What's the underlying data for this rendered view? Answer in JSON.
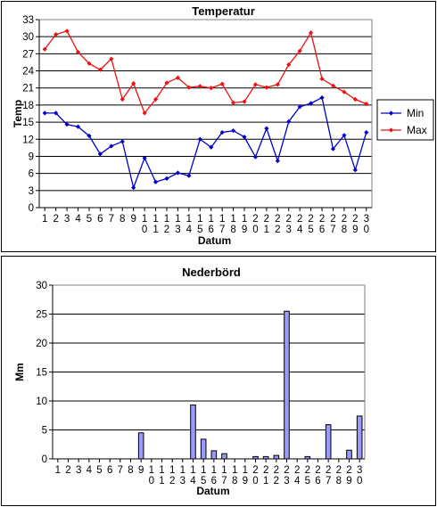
{
  "chart_data": [
    {
      "type": "line",
      "title": "Temperatur",
      "xlabel": "Datum",
      "ylabel": "Temp",
      "ylim": [
        0,
        33
      ],
      "yticks": [
        0,
        3,
        6,
        9,
        12,
        15,
        18,
        21,
        24,
        27,
        30,
        33
      ],
      "grid": true,
      "legend_placement": "right",
      "categories": [
        "1",
        "2",
        "3",
        "4",
        "5",
        "6",
        "7",
        "8",
        "9",
        "10",
        "11",
        "12",
        "13",
        "14",
        "15",
        "16",
        "17",
        "18",
        "19",
        "20",
        "21",
        "22",
        "23",
        "24",
        "25",
        "26",
        "27",
        "28",
        "29",
        "30"
      ],
      "series": [
        {
          "name": "Min",
          "color": "#0000cc",
          "values": [
            16.6,
            16.6,
            14.6,
            14.2,
            12.6,
            9.4,
            10.8,
            11.6,
            3.5,
            8.7,
            4.5,
            5.1,
            6.1,
            5.6,
            12.0,
            10.6,
            13.2,
            13.5,
            12.4,
            8.9,
            13.9,
            8.2,
            15.1,
            17.7,
            18.3,
            19.3,
            10.3,
            12.7,
            6.6,
            13.2
          ]
        },
        {
          "name": "Max",
          "color": "#ee1111",
          "values": [
            27.8,
            30.4,
            31.0,
            27.3,
            25.3,
            24.2,
            26.1,
            19.0,
            21.8,
            16.6,
            19.0,
            21.9,
            22.8,
            21.1,
            21.3,
            21.0,
            21.7,
            18.4,
            18.6,
            21.6,
            21.1,
            21.6,
            25.1,
            27.5,
            30.7,
            22.6,
            21.4,
            20.3,
            19.0,
            18.2
          ]
        }
      ]
    },
    {
      "type": "bar",
      "title": "Nederbörd",
      "xlabel": "Datum",
      "ylabel": "Mm",
      "ylim": [
        0,
        30
      ],
      "yticks": [
        0,
        5,
        10,
        15,
        20,
        25,
        30
      ],
      "grid": true,
      "bar_color": "#9999ff",
      "categories": [
        "1",
        "2",
        "3",
        "4",
        "5",
        "6",
        "7",
        "8",
        "9",
        "10",
        "11",
        "12",
        "13",
        "14",
        "15",
        "16",
        "17",
        "18",
        "19",
        "20",
        "21",
        "22",
        "23",
        "24",
        "25",
        "26",
        "27",
        "28",
        "29",
        "30"
      ],
      "values": [
        0,
        0,
        0,
        0,
        0,
        0,
        0,
        0,
        4.5,
        0,
        0,
        0,
        0,
        9.3,
        3.4,
        1.4,
        0.9,
        0,
        0,
        0.4,
        0.4,
        0.6,
        25.5,
        0,
        0.4,
        0,
        5.9,
        0,
        1.5,
        7.4
      ]
    }
  ]
}
